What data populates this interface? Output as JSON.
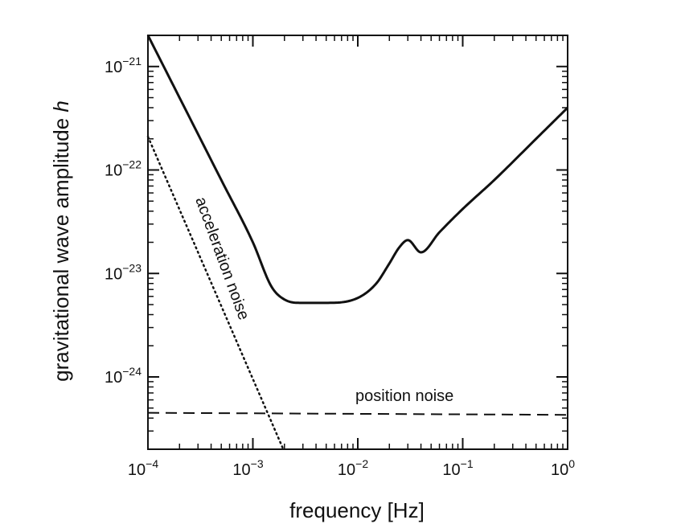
{
  "chart_data": {
    "type": "line",
    "title": "",
    "xlabel": "frequency  [Hz]",
    "ylabel_main": "gravitational wave amplitude ",
    "ylabel_var": "h",
    "xscale": "log",
    "yscale": "log",
    "xlim": [
      0.0001,
      1
    ],
    "ylim": [
      2e-25,
      2e-21
    ],
    "grid": false,
    "x_ticks": [
      {
        "base": "10",
        "exp": "−4"
      },
      {
        "base": "10",
        "exp": "−3"
      },
      {
        "base": "10",
        "exp": "−2"
      },
      {
        "base": "10",
        "exp": "−1"
      },
      {
        "base": "10",
        "exp": "0"
      }
    ],
    "y_ticks": [
      {
        "base": "10",
        "exp": "−24"
      },
      {
        "base": "10",
        "exp": "−23"
      },
      {
        "base": "10",
        "exp": "−22"
      },
      {
        "base": "10",
        "exp": "−21"
      }
    ],
    "series": [
      {
        "style": "solid",
        "kind": "sensitivity",
        "x": [
          0.0001,
          0.0002,
          0.0005,
          0.001,
          0.0015,
          0.002,
          0.003,
          0.005,
          0.01,
          0.015,
          0.02,
          0.025,
          0.03,
          0.04,
          0.06,
          0.1,
          0.2,
          0.5,
          1.0
        ],
        "y": [
          2e-21,
          5e-22,
          8e-23,
          2e-23,
          7.5e-24,
          5.6e-24,
          5.2e-24,
          5.2e-24,
          5.8e-24,
          8e-24,
          1.25e-23,
          1.8e-23,
          2.1e-23,
          1.6e-23,
          2.5e-23,
          4.2e-23,
          8e-23,
          2e-22,
          4e-22
        ]
      },
      {
        "style": "dotted",
        "label": "acceleration noise",
        "x": [
          0.0001,
          0.00195
        ],
        "y": [
          2.1e-22,
          2e-25
        ]
      },
      {
        "style": "dashed",
        "label": "position noise",
        "x": [
          0.0001,
          1.0
        ],
        "y": [
          4.5e-25,
          4.3e-25
        ]
      }
    ],
    "annotations": {
      "acceleration": "acceleration noise",
      "position": "position noise"
    }
  }
}
